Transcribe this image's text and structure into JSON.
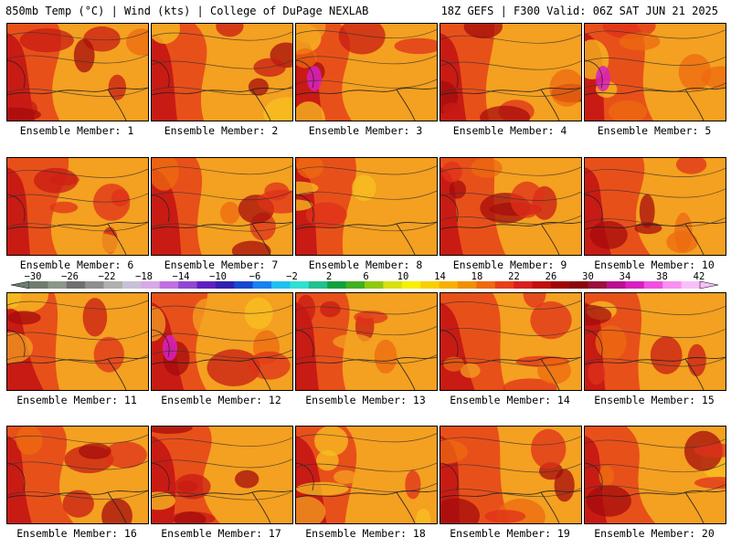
{
  "header": {
    "title": "850mb Temp (°C) | Wind (kts) | College of DuPage NEXLAB",
    "run_info": "18Z GEFS | F300 Valid: 06Z SAT JUN 21 2025"
  },
  "members": [
    {
      "label": "Ensemble Member: 1"
    },
    {
      "label": "Ensemble Member: 2"
    },
    {
      "label": "Ensemble Member: 3"
    },
    {
      "label": "Ensemble Member: 4"
    },
    {
      "label": "Ensemble Member: 5"
    },
    {
      "label": "Ensemble Member: 6"
    },
    {
      "label": "Ensemble Member: 7"
    },
    {
      "label": "Ensemble Member: 8"
    },
    {
      "label": "Ensemble Member: 9"
    },
    {
      "label": "Ensemble Member: 10"
    },
    {
      "label": "Ensemble Member: 11"
    },
    {
      "label": "Ensemble Member: 12"
    },
    {
      "label": "Ensemble Member: 13"
    },
    {
      "label": "Ensemble Member: 14"
    },
    {
      "label": "Ensemble Member: 15"
    },
    {
      "label": "Ensemble Member: 16"
    },
    {
      "label": "Ensemble Member: 17"
    },
    {
      "label": "Ensemble Member: 18"
    },
    {
      "label": "Ensemble Member: 19"
    },
    {
      "label": "Ensemble Member: 20"
    }
  ],
  "colorbar": {
    "labels": [
      "−30",
      "−26",
      "−22",
      "−18",
      "−14",
      "−10",
      "−6",
      "−2",
      "2",
      "6",
      "10",
      "14",
      "18",
      "22",
      "26",
      "30",
      "34",
      "38",
      "42"
    ],
    "colors": [
      "#6e7d6e",
      "#8a978a",
      "#6f6f6f",
      "#8f8f8f",
      "#b0b0b0",
      "#c8c0d8",
      "#d8a8e8",
      "#c070e0",
      "#9048d0",
      "#6020c0",
      "#3020b0",
      "#1848d0",
      "#1880f0",
      "#20c0f0",
      "#30e0d0",
      "#20c090",
      "#10a040",
      "#40b020",
      "#90c810",
      "#d8e010",
      "#f8f000",
      "#f8d000",
      "#f8b000",
      "#f09000",
      "#ee6a10",
      "#e84018",
      "#d82020",
      "#c01010",
      "#a00808",
      "#880808",
      "#9a1040",
      "#b81090",
      "#d820c0",
      "#f050e0",
      "#f890f0",
      "#f8c0f8"
    ]
  }
}
